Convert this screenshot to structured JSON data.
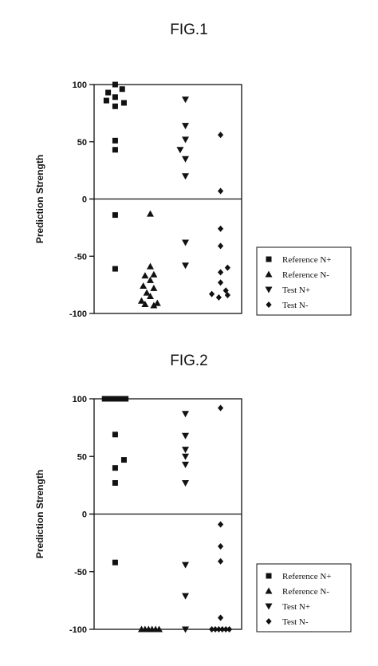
{
  "chart_data": [
    {
      "type": "scatter",
      "title": "FIG.1",
      "ylabel": "Prediction Strength",
      "ylim": [
        -100,
        100
      ],
      "yticks": [
        100,
        50,
        0,
        -50,
        -100
      ],
      "grid": false,
      "zero_line": true,
      "legend_position": "right",
      "series": [
        {
          "name": "Reference N+",
          "marker": "square",
          "points": [
            [
              1.0,
              100
            ],
            [
              0.8,
              93
            ],
            [
              1.2,
              96
            ],
            [
              0.75,
              86
            ],
            [
              1.0,
              89
            ],
            [
              1.25,
              84
            ],
            [
              1.0,
              81
            ],
            [
              1.0,
              51
            ],
            [
              1.0,
              43
            ],
            [
              1.0,
              -14
            ],
            [
              1.0,
              -61
            ]
          ]
        },
        {
          "name": "Reference N-",
          "marker": "triangle-up",
          "points": [
            [
              2.0,
              -13
            ],
            [
              2.0,
              -59
            ],
            [
              2.1,
              -66
            ],
            [
              1.85,
              -67
            ],
            [
              2.0,
              -71
            ],
            [
              1.8,
              -76
            ],
            [
              2.1,
              -78
            ],
            [
              1.9,
              -82
            ],
            [
              2.0,
              -85
            ],
            [
              1.75,
              -89
            ],
            [
              2.2,
              -91
            ],
            [
              1.85,
              -92
            ],
            [
              2.1,
              -93
            ]
          ]
        },
        {
          "name": "Test N+",
          "marker": "triangle-down",
          "points": [
            [
              3.0,
              87
            ],
            [
              3.0,
              64
            ],
            [
              3.0,
              52
            ],
            [
              2.85,
              43
            ],
            [
              3.0,
              35
            ],
            [
              3.0,
              20
            ],
            [
              3.0,
              -38
            ],
            [
              3.0,
              -58
            ]
          ]
        },
        {
          "name": "Test N-",
          "marker": "diamond",
          "points": [
            [
              4.0,
              56
            ],
            [
              4.0,
              7
            ],
            [
              4.0,
              -26
            ],
            [
              4.0,
              -41
            ],
            [
              4.2,
              -60
            ],
            [
              4.0,
              -64
            ],
            [
              4.0,
              -73
            ],
            [
              4.15,
              -80
            ],
            [
              3.75,
              -83
            ],
            [
              4.2,
              -84
            ],
            [
              3.95,
              -86
            ]
          ]
        }
      ]
    },
    {
      "type": "scatter",
      "title": "FIG.2",
      "ylabel": "Prediction Strength",
      "ylim": [
        -100,
        100
      ],
      "yticks": [
        100,
        50,
        0,
        -50,
        -100
      ],
      "grid": false,
      "zero_line": true,
      "legend_position": "right",
      "series": [
        {
          "name": "Reference N+",
          "marker": "square",
          "points": [
            [
              0.7,
              100
            ],
            [
              0.8,
              100
            ],
            [
              0.9,
              100
            ],
            [
              1.0,
              100
            ],
            [
              1.1,
              100
            ],
            [
              1.2,
              100
            ],
            [
              1.3,
              100
            ],
            [
              1.0,
              69
            ],
            [
              1.25,
              47
            ],
            [
              1.0,
              40
            ],
            [
              1.0,
              27
            ],
            [
              1.0,
              -42
            ]
          ]
        },
        {
          "name": "Reference N-",
          "marker": "triangle-up",
          "points": [
            [
              1.75,
              -100
            ],
            [
              1.85,
              -100
            ],
            [
              1.95,
              -100
            ],
            [
              2.05,
              -100
            ],
            [
              2.15,
              -100
            ],
            [
              2.25,
              -100
            ]
          ]
        },
        {
          "name": "Test N+",
          "marker": "triangle-down",
          "points": [
            [
              3.0,
              87
            ],
            [
              3.0,
              68
            ],
            [
              3.0,
              56
            ],
            [
              3.0,
              50
            ],
            [
              3.0,
              43
            ],
            [
              3.0,
              27
            ],
            [
              3.0,
              -44
            ],
            [
              3.0,
              -71
            ],
            [
              3.0,
              -100
            ]
          ]
        },
        {
          "name": "Test N-",
          "marker": "diamond",
          "points": [
            [
              4.0,
              92
            ],
            [
              4.0,
              -9
            ],
            [
              4.0,
              -28
            ],
            [
              4.0,
              -41
            ],
            [
              4.0,
              -90
            ],
            [
              3.75,
              -100
            ],
            [
              3.85,
              -100
            ],
            [
              3.95,
              -100
            ],
            [
              4.05,
              -100
            ],
            [
              4.15,
              -100
            ],
            [
              4.25,
              -100
            ]
          ]
        }
      ]
    }
  ]
}
